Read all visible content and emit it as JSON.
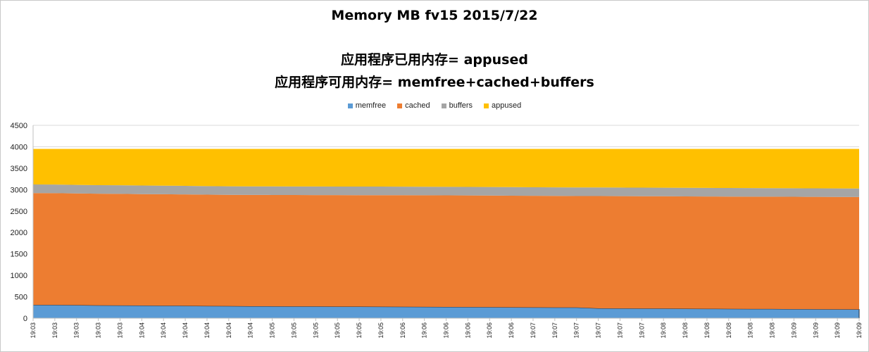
{
  "chart_data": {
    "type": "area",
    "stacked": true,
    "title": "Memory MB fv15  2015/7/22",
    "subtitle_lines": [
      "应用程序已用内存= appused",
      "应用程序可用内存= memfree+cached+buffers"
    ],
    "xlabel": "",
    "ylabel": "",
    "ylim": [
      0,
      4500
    ],
    "yticks": [
      0,
      500,
      1000,
      1500,
      2000,
      2500,
      3000,
      3500,
      4000,
      4500
    ],
    "grid": true,
    "legend_position": "top",
    "x": [
      "19:03",
      "19:03",
      "19:03",
      "19:03",
      "19:03",
      "19:04",
      "19:04",
      "19:04",
      "19:04",
      "19:04",
      "19:04",
      "19:05",
      "19:05",
      "19:05",
      "19:05",
      "19:05",
      "19:05",
      "19:06",
      "19:06",
      "19:06",
      "19:06",
      "19:06",
      "19:06",
      "19:07",
      "19:07",
      "19:07",
      "19:07",
      "19:07",
      "19:07",
      "19:08",
      "19:08",
      "19:08",
      "19:08",
      "19:08",
      "19:08",
      "19:09",
      "19:09",
      "19:09",
      "19:09"
    ],
    "series": [
      {
        "name": "memfree",
        "color": "#5b9bd5",
        "values": [
          310,
          310,
          305,
          300,
          298,
          295,
          292,
          290,
          285,
          283,
          280,
          278,
          276,
          275,
          272,
          270,
          268,
          266,
          265,
          263,
          260,
          258,
          255,
          252,
          250,
          250,
          230,
          228,
          226,
          225,
          222,
          220,
          218,
          216,
          215,
          212,
          210,
          208,
          205
        ]
      },
      {
        "name": "cached",
        "color": "#ed7d31",
        "values": [
          2610,
          2608,
          2605,
          2605,
          2603,
          2600,
          2600,
          2598,
          2597,
          2595,
          2596,
          2597,
          2598,
          2598,
          2600,
          2601,
          2603,
          2603,
          2603,
          2602,
          2603,
          2603,
          2603,
          2603,
          2603,
          2600,
          2620,
          2620,
          2620,
          2620,
          2620,
          2620,
          2620,
          2620,
          2620,
          2620,
          2620,
          2620,
          2622
        ]
      },
      {
        "name": "buffers",
        "color": "#a5a5a5",
        "values": [
          200,
          200,
          200,
          200,
          200,
          200,
          200,
          200,
          200,
          200,
          200,
          200,
          200,
          200,
          200,
          200,
          200,
          200,
          200,
          200,
          200,
          200,
          200,
          200,
          200,
          200,
          200,
          200,
          200,
          200,
          200,
          200,
          200,
          200,
          200,
          200,
          200,
          200,
          200
        ]
      },
      {
        "name": "appused",
        "color": "#ffc000",
        "values": [
          830,
          832,
          840,
          845,
          849,
          855,
          858,
          862,
          868,
          872,
          874,
          875,
          876,
          877,
          878,
          879,
          879,
          881,
          882,
          885,
          887,
          889,
          892,
          895,
          897,
          900,
          900,
          902,
          904,
          905,
          908,
          910,
          912,
          914,
          915,
          918,
          920,
          922,
          923
        ]
      }
    ]
  }
}
